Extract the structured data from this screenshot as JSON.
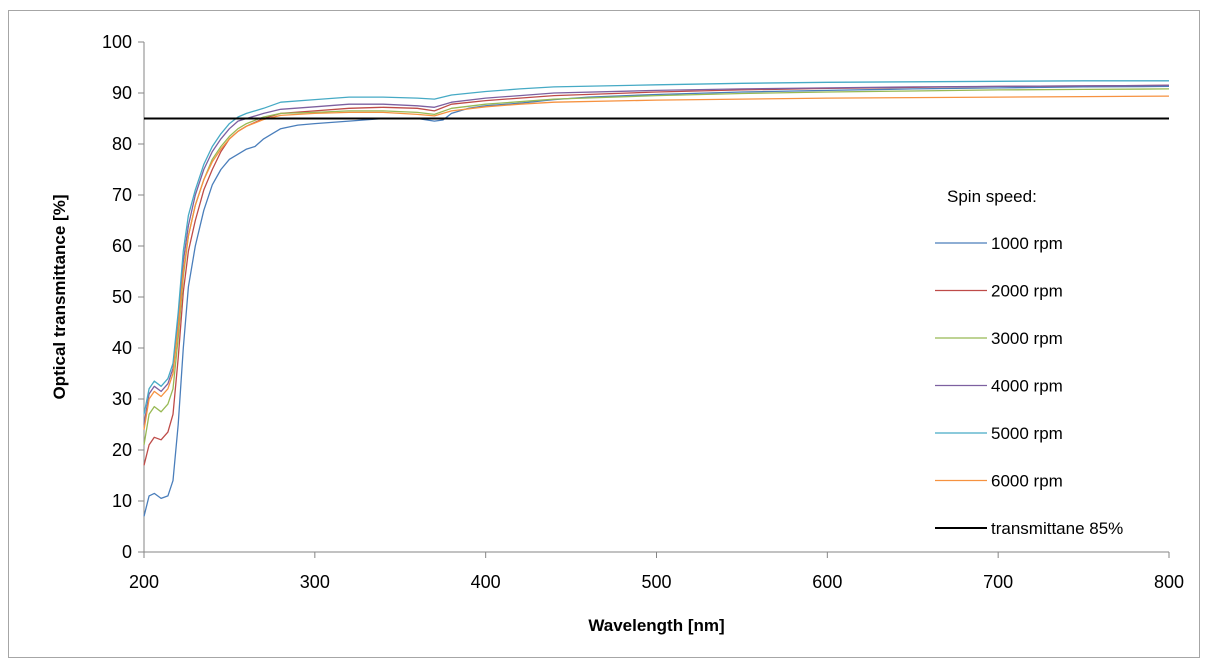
{
  "chart_data": {
    "type": "line",
    "title": "",
    "xlabel": "Wavelength [nm]",
    "ylabel": "Optical transmittance [%]",
    "xlim": [
      200,
      800
    ],
    "ylim": [
      0,
      100
    ],
    "x_ticks": [
      200,
      300,
      400,
      500,
      600,
      700,
      800
    ],
    "y_ticks": [
      0,
      10,
      20,
      30,
      40,
      50,
      60,
      70,
      80,
      90,
      100
    ],
    "grid": false,
    "legend_title": "Spin speed:",
    "legend_position": "right",
    "series": [
      {
        "name": "1000 rpm",
        "color": "#4a7ebb",
        "points": [
          [
            200,
            7
          ],
          [
            203,
            11
          ],
          [
            206,
            11.5
          ],
          [
            210,
            10.5
          ],
          [
            214,
            11
          ],
          [
            217,
            14
          ],
          [
            220,
            25
          ],
          [
            223,
            40
          ],
          [
            226,
            52
          ],
          [
            230,
            60
          ],
          [
            235,
            67
          ],
          [
            240,
            72
          ],
          [
            245,
            75
          ],
          [
            250,
            77
          ],
          [
            255,
            78
          ],
          [
            260,
            79
          ],
          [
            265,
            79.5
          ],
          [
            270,
            81
          ],
          [
            275,
            82
          ],
          [
            280,
            83
          ],
          [
            290,
            83.7
          ],
          [
            300,
            84
          ],
          [
            320,
            84.5
          ],
          [
            340,
            85
          ],
          [
            360,
            85
          ],
          [
            370,
            84.5
          ],
          [
            375,
            84.7
          ],
          [
            380,
            86
          ],
          [
            390,
            87
          ],
          [
            400,
            87.5
          ],
          [
            420,
            88
          ],
          [
            440,
            88.7
          ],
          [
            460,
            89.2
          ],
          [
            500,
            89.7
          ],
          [
            550,
            90.2
          ],
          [
            600,
            90.5
          ],
          [
            650,
            90.8
          ],
          [
            700,
            91
          ],
          [
            750,
            91.2
          ],
          [
            800,
            91.3
          ]
        ]
      },
      {
        "name": "2000 rpm",
        "color": "#be4b48",
        "points": [
          [
            200,
            17
          ],
          [
            203,
            21
          ],
          [
            206,
            22.5
          ],
          [
            210,
            22
          ],
          [
            214,
            23.5
          ],
          [
            217,
            27
          ],
          [
            220,
            38
          ],
          [
            223,
            51
          ],
          [
            226,
            59
          ],
          [
            230,
            65
          ],
          [
            235,
            71
          ],
          [
            240,
            75
          ],
          [
            245,
            78.5
          ],
          [
            250,
            81
          ],
          [
            255,
            82.5
          ],
          [
            260,
            83.5
          ],
          [
            270,
            85
          ],
          [
            280,
            86
          ],
          [
            300,
            86.5
          ],
          [
            320,
            87
          ],
          [
            340,
            87.2
          ],
          [
            360,
            87
          ],
          [
            370,
            86.5
          ],
          [
            380,
            87.8
          ],
          [
            400,
            88.5
          ],
          [
            420,
            89
          ],
          [
            440,
            89.5
          ],
          [
            500,
            90.2
          ],
          [
            550,
            90.6
          ],
          [
            600,
            90.9
          ],
          [
            650,
            91.1
          ],
          [
            700,
            91.3
          ],
          [
            750,
            91.4
          ],
          [
            800,
            91.5
          ]
        ]
      },
      {
        "name": "3000 rpm",
        "color": "#98b954",
        "points": [
          [
            200,
            21
          ],
          [
            203,
            27
          ],
          [
            206,
            28.5
          ],
          [
            210,
            27.5
          ],
          [
            214,
            29
          ],
          [
            217,
            32
          ],
          [
            220,
            42
          ],
          [
            223,
            54
          ],
          [
            226,
            62
          ],
          [
            230,
            68
          ],
          [
            235,
            73
          ],
          [
            240,
            77
          ],
          [
            245,
            79.5
          ],
          [
            250,
            81.5
          ],
          [
            255,
            83
          ],
          [
            260,
            84
          ],
          [
            270,
            85.3
          ],
          [
            280,
            86
          ],
          [
            300,
            86.2
          ],
          [
            320,
            86.5
          ],
          [
            340,
            86.5
          ],
          [
            360,
            86.2
          ],
          [
            370,
            85.8
          ],
          [
            380,
            87
          ],
          [
            400,
            87.8
          ],
          [
            420,
            88.3
          ],
          [
            440,
            88.8
          ],
          [
            500,
            89.5
          ],
          [
            550,
            89.9
          ],
          [
            600,
            90.2
          ],
          [
            650,
            90.4
          ],
          [
            700,
            90.6
          ],
          [
            750,
            90.7
          ],
          [
            800,
            90.8
          ]
        ]
      },
      {
        "name": "4000 rpm",
        "color": "#7d60a0",
        "points": [
          [
            200,
            25
          ],
          [
            203,
            31
          ],
          [
            206,
            32.5
          ],
          [
            210,
            31.5
          ],
          [
            214,
            33
          ],
          [
            217,
            36
          ],
          [
            220,
            45
          ],
          [
            223,
            57
          ],
          [
            226,
            64
          ],
          [
            230,
            70
          ],
          [
            235,
            75
          ],
          [
            240,
            78.5
          ],
          [
            245,
            81
          ],
          [
            250,
            83
          ],
          [
            255,
            84.5
          ],
          [
            260,
            85
          ],
          [
            270,
            86
          ],
          [
            280,
            86.8
          ],
          [
            300,
            87.3
          ],
          [
            320,
            87.8
          ],
          [
            340,
            87.8
          ],
          [
            360,
            87.5
          ],
          [
            370,
            87.2
          ],
          [
            380,
            88.2
          ],
          [
            400,
            89
          ],
          [
            420,
            89.5
          ],
          [
            440,
            90
          ],
          [
            500,
            90.5
          ],
          [
            550,
            90.8
          ],
          [
            600,
            91
          ],
          [
            650,
            91.2
          ],
          [
            700,
            91.3
          ],
          [
            750,
            91.4
          ],
          [
            800,
            91.5
          ]
        ]
      },
      {
        "name": "5000 rpm",
        "color": "#46aac5",
        "points": [
          [
            200,
            27
          ],
          [
            203,
            32
          ],
          [
            206,
            33.5
          ],
          [
            210,
            32.5
          ],
          [
            214,
            34
          ],
          [
            217,
            37
          ],
          [
            220,
            47
          ],
          [
            223,
            59
          ],
          [
            226,
            66
          ],
          [
            230,
            71
          ],
          [
            235,
            76
          ],
          [
            240,
            79.5
          ],
          [
            245,
            82
          ],
          [
            250,
            84
          ],
          [
            255,
            85.3
          ],
          [
            260,
            86
          ],
          [
            270,
            87
          ],
          [
            280,
            88.2
          ],
          [
            300,
            88.7
          ],
          [
            320,
            89.2
          ],
          [
            340,
            89.2
          ],
          [
            360,
            89
          ],
          [
            370,
            88.8
          ],
          [
            380,
            89.6
          ],
          [
            400,
            90.3
          ],
          [
            420,
            90.8
          ],
          [
            440,
            91.2
          ],
          [
            500,
            91.6
          ],
          [
            550,
            91.9
          ],
          [
            600,
            92.1
          ],
          [
            650,
            92.2
          ],
          [
            700,
            92.3
          ],
          [
            750,
            92.4
          ],
          [
            800,
            92.4
          ]
        ]
      },
      {
        "name": "6000 rpm",
        "color": "#f69240",
        "points": [
          [
            200,
            24
          ],
          [
            203,
            30
          ],
          [
            206,
            31.5
          ],
          [
            210,
            30.5
          ],
          [
            214,
            32
          ],
          [
            217,
            35
          ],
          [
            220,
            44
          ],
          [
            223,
            55
          ],
          [
            226,
            62
          ],
          [
            230,
            68
          ],
          [
            235,
            73
          ],
          [
            240,
            76.5
          ],
          [
            245,
            79
          ],
          [
            250,
            81
          ],
          [
            255,
            82.5
          ],
          [
            260,
            83.5
          ],
          [
            270,
            84.8
          ],
          [
            280,
            85.6
          ],
          [
            300,
            86
          ],
          [
            320,
            86.2
          ],
          [
            340,
            86.2
          ],
          [
            360,
            85.8
          ],
          [
            370,
            85.5
          ],
          [
            380,
            86.5
          ],
          [
            400,
            87.3
          ],
          [
            420,
            87.8
          ],
          [
            440,
            88.2
          ],
          [
            500,
            88.6
          ],
          [
            550,
            88.8
          ],
          [
            600,
            89
          ],
          [
            650,
            89.1
          ],
          [
            700,
            89.2
          ],
          [
            750,
            89.3
          ],
          [
            800,
            89.4
          ]
        ]
      },
      {
        "name": "transmittane 85%",
        "color": "#000000",
        "points": [
          [
            200,
            85
          ],
          [
            800,
            85
          ]
        ]
      }
    ]
  }
}
